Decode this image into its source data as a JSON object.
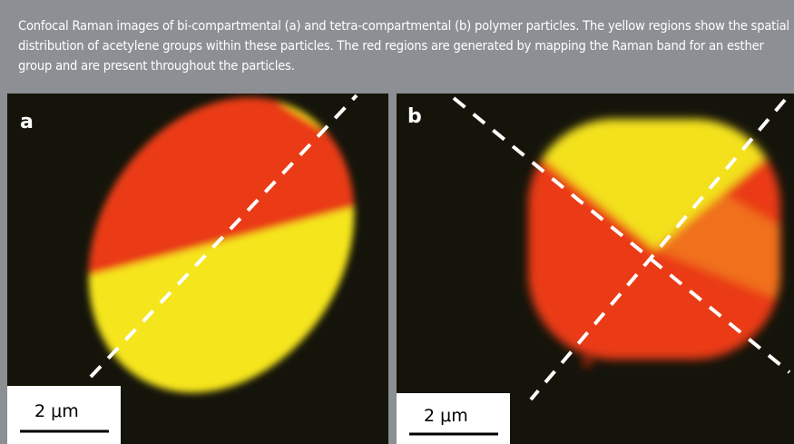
{
  "caption": "Confocal Raman images of bi-compartmental (a) and tetra-compartmental (b) polymer particles. The yellow regions show the spatial distribution of acetylene groups within these particles. The red regions are generated by mapping the Raman band for an esther group and are present throughout the particles.",
  "panels": [
    {
      "label": "a",
      "scale_bar": "2 μm"
    },
    {
      "label": "b",
      "scale_bar": "2 μm"
    }
  ]
}
